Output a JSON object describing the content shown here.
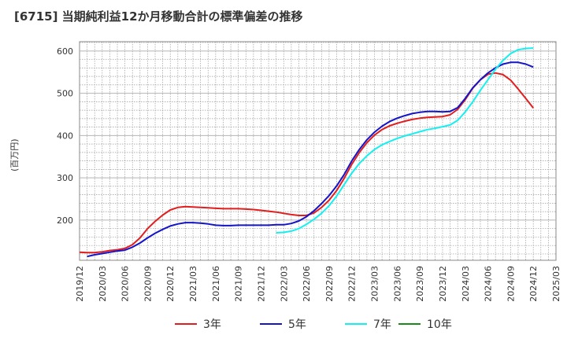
{
  "chart_data": {
    "type": "line",
    "title": "[6715]  当期純利益12か月移動合計の標準偏差の推移",
    "ylabel": "(百万円)",
    "xlabel": "",
    "ylim": [
      105,
      622
    ],
    "yticks": [
      200,
      300,
      400,
      500,
      600
    ],
    "x_range": [
      "2019/12",
      "2025/03"
    ],
    "x_ticks": [
      "2019/12",
      "2020/03",
      "2020/06",
      "2020/09",
      "2020/12",
      "2021/03",
      "2021/06",
      "2021/09",
      "2021/12",
      "2022/03",
      "2022/06",
      "2022/09",
      "2022/12",
      "2023/03",
      "2023/06",
      "2023/09",
      "2023/12",
      "2024/03",
      "2024/06",
      "2024/09",
      "2024/12",
      "2025/03"
    ],
    "grid": true,
    "legend_position": "bottom",
    "series": [
      {
        "name": "3年",
        "color": "#e01e1e",
        "points": [
          [
            "2019/12",
            124
          ],
          [
            "2020/01",
            123
          ],
          [
            "2020/02",
            123
          ],
          [
            "2020/03",
            125
          ],
          [
            "2020/04",
            128
          ],
          [
            "2020/05",
            130
          ],
          [
            "2020/06",
            133
          ],
          [
            "2020/07",
            142
          ],
          [
            "2020/08",
            158
          ],
          [
            "2020/09",
            180
          ],
          [
            "2020/10",
            197
          ],
          [
            "2020/11",
            212
          ],
          [
            "2020/12",
            224
          ],
          [
            "2021/01",
            230
          ],
          [
            "2021/02",
            232
          ],
          [
            "2021/03",
            231
          ],
          [
            "2021/04",
            230
          ],
          [
            "2021/05",
            229
          ],
          [
            "2021/06",
            228
          ],
          [
            "2021/07",
            227
          ],
          [
            "2021/08",
            227
          ],
          [
            "2021/09",
            227
          ],
          [
            "2021/10",
            226
          ],
          [
            "2021/11",
            225
          ],
          [
            "2021/12",
            223
          ],
          [
            "2022/01",
            221
          ],
          [
            "2022/02",
            219
          ],
          [
            "2022/03",
            216
          ],
          [
            "2022/04",
            213
          ],
          [
            "2022/05",
            211
          ],
          [
            "2022/06",
            211
          ],
          [
            "2022/07",
            217
          ],
          [
            "2022/08",
            230
          ],
          [
            "2022/09",
            247
          ],
          [
            "2022/10",
            270
          ],
          [
            "2022/11",
            299
          ],
          [
            "2022/12",
            332
          ],
          [
            "2023/01",
            360
          ],
          [
            "2023/02",
            383
          ],
          [
            "2023/03",
            401
          ],
          [
            "2023/04",
            414
          ],
          [
            "2023/05",
            423
          ],
          [
            "2023/06",
            429
          ],
          [
            "2023/07",
            434
          ],
          [
            "2023/08",
            438
          ],
          [
            "2023/09",
            441
          ],
          [
            "2023/10",
            443
          ],
          [
            "2023/11",
            444
          ],
          [
            "2023/12",
            445
          ],
          [
            "2024/01",
            449
          ],
          [
            "2024/02",
            462
          ],
          [
            "2024/03",
            485
          ],
          [
            "2024/04",
            512
          ],
          [
            "2024/05",
            532
          ],
          [
            "2024/06",
            545
          ],
          [
            "2024/07",
            548
          ],
          [
            "2024/08",
            544
          ],
          [
            "2024/09",
            531
          ],
          [
            "2024/10",
            510
          ],
          [
            "2024/11",
            488
          ],
          [
            "2024/12",
            465
          ]
        ]
      },
      {
        "name": "5年",
        "color": "#1414c8",
        "points": [
          [
            "2020/01",
            114
          ],
          [
            "2020/02",
            118
          ],
          [
            "2020/03",
            121
          ],
          [
            "2020/04",
            124
          ],
          [
            "2020/05",
            127
          ],
          [
            "2020/06",
            129
          ],
          [
            "2020/07",
            136
          ],
          [
            "2020/08",
            146
          ],
          [
            "2020/09",
            158
          ],
          [
            "2020/10",
            169
          ],
          [
            "2020/11",
            178
          ],
          [
            "2020/12",
            186
          ],
          [
            "2021/01",
            191
          ],
          [
            "2021/02",
            194
          ],
          [
            "2021/03",
            194
          ],
          [
            "2021/04",
            193
          ],
          [
            "2021/05",
            191
          ],
          [
            "2021/06",
            188
          ],
          [
            "2021/07",
            187
          ],
          [
            "2021/08",
            187
          ],
          [
            "2021/09",
            188
          ],
          [
            "2021/10",
            188
          ],
          [
            "2021/11",
            188
          ],
          [
            "2021/12",
            188
          ],
          [
            "2022/01",
            188
          ],
          [
            "2022/02",
            189
          ],
          [
            "2022/03",
            189
          ],
          [
            "2022/04",
            192
          ],
          [
            "2022/05",
            198
          ],
          [
            "2022/06",
            208
          ],
          [
            "2022/07",
            222
          ],
          [
            "2022/08",
            239
          ],
          [
            "2022/09",
            258
          ],
          [
            "2022/10",
            281
          ],
          [
            "2022/11",
            308
          ],
          [
            "2022/12",
            340
          ],
          [
            "2023/01",
            367
          ],
          [
            "2023/02",
            390
          ],
          [
            "2023/03",
            408
          ],
          [
            "2023/04",
            422
          ],
          [
            "2023/05",
            433
          ],
          [
            "2023/06",
            441
          ],
          [
            "2023/07",
            447
          ],
          [
            "2023/08",
            452
          ],
          [
            "2023/09",
            455
          ],
          [
            "2023/10",
            457
          ],
          [
            "2023/11",
            457
          ],
          [
            "2023/12",
            456
          ],
          [
            "2024/01",
            457
          ],
          [
            "2024/02",
            466
          ],
          [
            "2024/03",
            488
          ],
          [
            "2024/04",
            513
          ],
          [
            "2024/05",
            532
          ],
          [
            "2024/06",
            548
          ],
          [
            "2024/07",
            560
          ],
          [
            "2024/08",
            569
          ],
          [
            "2024/09",
            573
          ],
          [
            "2024/10",
            573
          ],
          [
            "2024/11",
            569
          ],
          [
            "2024/12",
            562
          ]
        ]
      },
      {
        "name": "7年",
        "color": "#14f0f0",
        "points": [
          [
            "2022/02",
            170
          ],
          [
            "2022/03",
            171
          ],
          [
            "2022/04",
            174
          ],
          [
            "2022/05",
            180
          ],
          [
            "2022/06",
            190
          ],
          [
            "2022/07",
            202
          ],
          [
            "2022/08",
            216
          ],
          [
            "2022/09",
            234
          ],
          [
            "2022/10",
            257
          ],
          [
            "2022/11",
            284
          ],
          [
            "2022/12",
            311
          ],
          [
            "2023/01",
            334
          ],
          [
            "2023/02",
            352
          ],
          [
            "2023/03",
            367
          ],
          [
            "2023/04",
            378
          ],
          [
            "2023/05",
            386
          ],
          [
            "2023/06",
            393
          ],
          [
            "2023/07",
            399
          ],
          [
            "2023/08",
            404
          ],
          [
            "2023/09",
            409
          ],
          [
            "2023/10",
            414
          ],
          [
            "2023/11",
            417
          ],
          [
            "2023/12",
            421
          ],
          [
            "2024/01",
            425
          ],
          [
            "2024/02",
            436
          ],
          [
            "2024/03",
            456
          ],
          [
            "2024/04",
            480
          ],
          [
            "2024/05",
            507
          ],
          [
            "2024/06",
            532
          ],
          [
            "2024/07",
            557
          ],
          [
            "2024/08",
            578
          ],
          [
            "2024/09",
            594
          ],
          [
            "2024/10",
            603
          ],
          [
            "2024/11",
            606
          ],
          [
            "2024/12",
            607
          ]
        ]
      },
      {
        "name": "10年",
        "color": "#1a8a1a",
        "points": []
      }
    ]
  }
}
